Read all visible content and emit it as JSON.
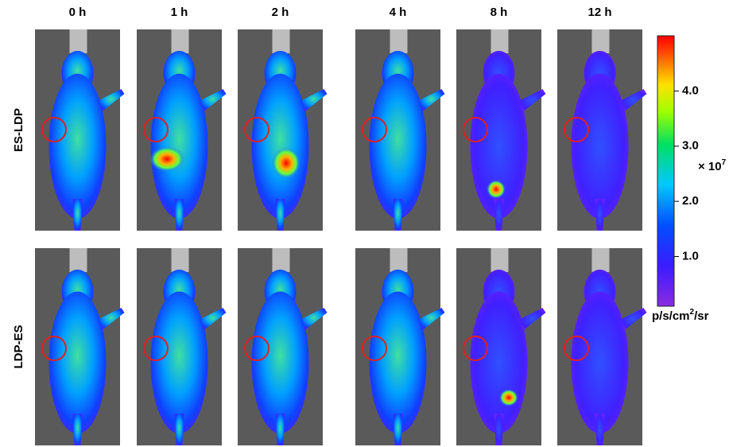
{
  "columns": [
    "0 h",
    "1 h",
    "2 h",
    "4 h",
    "8 h",
    "12 h"
  ],
  "rows": [
    "ES-LDP",
    "LDP-ES"
  ],
  "colorbar": {
    "lim": [
      0.1,
      5.0
    ],
    "ticks": [
      {
        "value": 4,
        "label": "4.0"
      },
      {
        "value": 3,
        "label": "3.0"
      },
      {
        "value": 2,
        "label": "2.0"
      },
      {
        "value": 1,
        "label": "1.0"
      }
    ],
    "multiplier": {
      "base": "× 10",
      "power": "7"
    },
    "unit": {
      "base": "p/s/cm",
      "power": "2",
      "rest": "/sr"
    }
  }
}
